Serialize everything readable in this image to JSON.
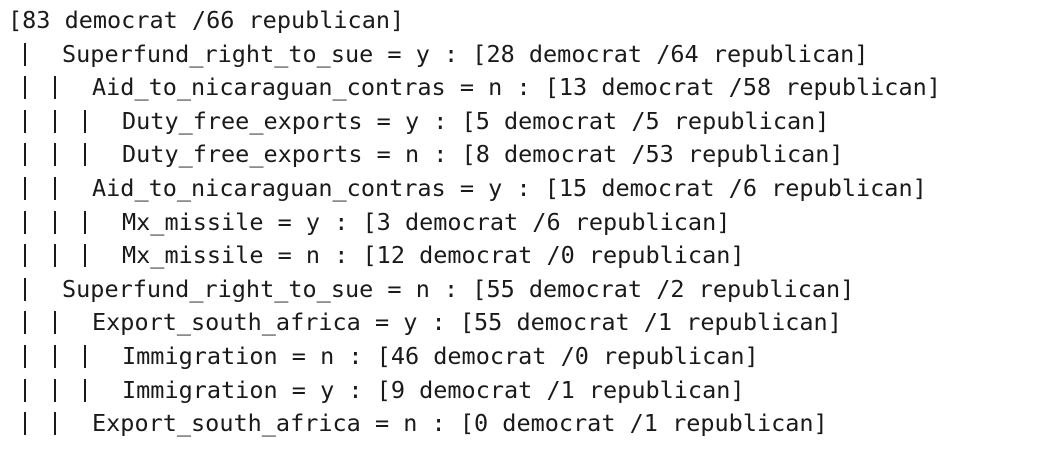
{
  "tree": {
    "root": "[83 democrat /66 republican]",
    "lines": [
      {
        "depth": 1,
        "text": "Superfund_right_to_sue = y : [28 democrat /64 republican]"
      },
      {
        "depth": 2,
        "text": "Aid_to_nicaraguan_contras = n : [13 democrat /58 republican]"
      },
      {
        "depth": 3,
        "text": "Duty_free_exports = y : [5 democrat /5 republican]"
      },
      {
        "depth": 3,
        "text": "Duty_free_exports = n : [8 democrat /53 republican]"
      },
      {
        "depth": 2,
        "text": "Aid_to_nicaraguan_contras = y : [15 democrat /6 republican]"
      },
      {
        "depth": 3,
        "text": "Mx_missile = y : [3 democrat /6 republican]"
      },
      {
        "depth": 3,
        "text": "Mx_missile = n : [12 democrat /0 republican]"
      },
      {
        "depth": 1,
        "text": "Superfund_right_to_sue = n : [55 democrat /2 republican]"
      },
      {
        "depth": 2,
        "text": "Export_south_africa = y : [55 democrat /1 republican]"
      },
      {
        "depth": 3,
        "text": "Immigration = n : [46 democrat /0 republican]"
      },
      {
        "depth": 3,
        "text": "Immigration = y : [9 democrat /1 republican]"
      },
      {
        "depth": 2,
        "text": "Export_south_africa = n : [0 democrat /1 republican]"
      }
    ]
  }
}
